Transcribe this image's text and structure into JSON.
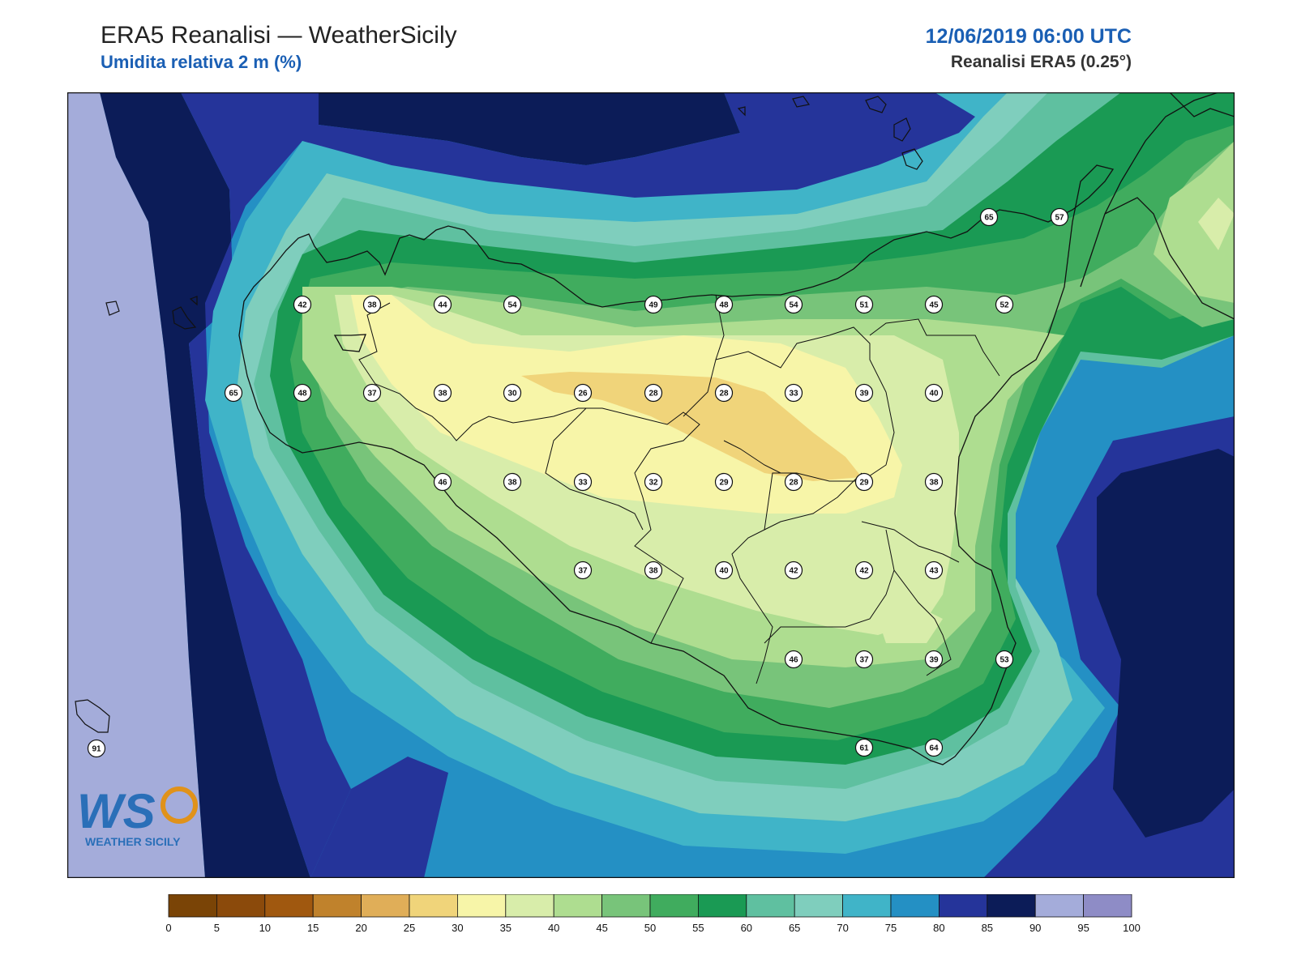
{
  "header": {
    "title": "ERA5 Reanalisi — WeatherSicily",
    "subtitle": "Umidita relativa 2 m (%)",
    "datetime": "12/06/2019 06:00 UTC",
    "source": "Reanalisi ERA5 (0.25°)"
  },
  "logo": {
    "letters": "WS",
    "text": "WEATHER SICILY"
  },
  "colorbar": {
    "ticks": [
      "0",
      "5",
      "10",
      "15",
      "20",
      "25",
      "30",
      "35",
      "40",
      "45",
      "50",
      "55",
      "60",
      "65",
      "70",
      "75",
      "80",
      "85",
      "90",
      "95",
      "100"
    ],
    "colors": [
      "#7a4406",
      "#8b4a0b",
      "#a0580f",
      "#c0822c",
      "#e0ae58",
      "#f0d47a",
      "#f7f5a8",
      "#d8edaa",
      "#aedd90",
      "#78c47a",
      "#40ac5e",
      "#1a9a54",
      "#5fc0a0",
      "#7fcebd",
      "#40b4c8",
      "#2490c4",
      "#25349a",
      "#0c1c58",
      "#a4acda",
      "#8e8cc6"
    ]
  },
  "labels": [
    {
      "v": "65"
    },
    {
      "v": "57"
    },
    {
      "v": "42"
    },
    {
      "v": "38"
    },
    {
      "v": "44"
    },
    {
      "v": "54"
    },
    {
      "v": "49"
    },
    {
      "v": "48"
    },
    {
      "v": "54"
    },
    {
      "v": "51"
    },
    {
      "v": "45"
    },
    {
      "v": "52"
    },
    {
      "v": "65"
    },
    {
      "v": "48"
    },
    {
      "v": "37"
    },
    {
      "v": "38"
    },
    {
      "v": "30"
    },
    {
      "v": "26"
    },
    {
      "v": "28"
    },
    {
      "v": "28"
    },
    {
      "v": "33"
    },
    {
      "v": "39"
    },
    {
      "v": "40"
    },
    {
      "v": "46"
    },
    {
      "v": "38"
    },
    {
      "v": "33"
    },
    {
      "v": "32"
    },
    {
      "v": "29"
    },
    {
      "v": "28"
    },
    {
      "v": "29"
    },
    {
      "v": "38"
    },
    {
      "v": "37"
    },
    {
      "v": "38"
    },
    {
      "v": "40"
    },
    {
      "v": "42"
    },
    {
      "v": "42"
    },
    {
      "v": "43"
    },
    {
      "v": "46"
    },
    {
      "v": "37"
    },
    {
      "v": "39"
    },
    {
      "v": "53"
    },
    {
      "v": "61"
    },
    {
      "v": "64"
    },
    {
      "v": "91"
    }
  ]
}
